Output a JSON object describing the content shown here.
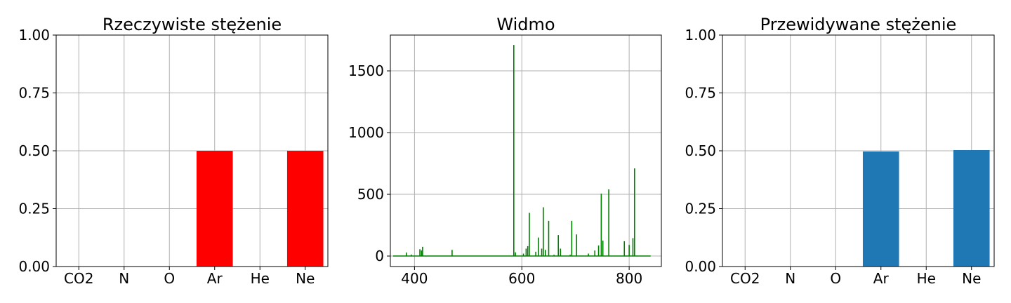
{
  "chart_data": [
    {
      "type": "bar",
      "title": "Rzeczywiste stężenie",
      "categories": [
        "CO2",
        "N",
        "O",
        "Ar",
        "He",
        "Ne"
      ],
      "values": [
        0,
        0,
        0,
        0.5,
        0,
        0.5
      ],
      "ylim": [
        0,
        1
      ],
      "yticks": [
        "0.00",
        "0.25",
        "0.50",
        "0.75",
        "1.00"
      ],
      "grid": true,
      "color": "#ff0000"
    },
    {
      "type": "line",
      "title": "Widmo",
      "xlim": [
        355,
        860
      ],
      "ylim": [
        -85,
        1790
      ],
      "xticks": [
        "400",
        "600",
        "800"
      ],
      "yticks": [
        "0",
        "500",
        "1000",
        "1500"
      ],
      "grid": true,
      "color": "#008000",
      "baseline": [
        [
          360,
          0
        ],
        [
          840,
          0
        ]
      ],
      "peaks": [
        [
          385,
          28
        ],
        [
          394,
          12
        ],
        [
          410,
          55
        ],
        [
          413,
          45
        ],
        [
          415,
          75
        ],
        [
          470,
          50
        ],
        [
          585,
          1710
        ],
        [
          588,
          30
        ],
        [
          603,
          20
        ],
        [
          608,
          60
        ],
        [
          611,
          80
        ],
        [
          614,
          350
        ],
        [
          626,
          35
        ],
        [
          631,
          150
        ],
        [
          637,
          60
        ],
        [
          640,
          395
        ],
        [
          644,
          50
        ],
        [
          650,
          285
        ],
        [
          660,
          10
        ],
        [
          668,
          170
        ],
        [
          672,
          60
        ],
        [
          690,
          10
        ],
        [
          693,
          285
        ],
        [
          702,
          175
        ],
        [
          724,
          20
        ],
        [
          736,
          45
        ],
        [
          743,
          85
        ],
        [
          748,
          505
        ],
        [
          751,
          125
        ],
        [
          762,
          540
        ],
        [
          791,
          120
        ],
        [
          800,
          90
        ],
        [
          807,
          145
        ],
        [
          810,
          710
        ]
      ]
    },
    {
      "type": "bar",
      "title": "Przewidywane stężenie",
      "categories": [
        "CO2",
        "N",
        "O",
        "Ar",
        "He",
        "Ne"
      ],
      "values": [
        0,
        0,
        0,
        0.497,
        0,
        0.503
      ],
      "ylim": [
        0,
        1
      ],
      "yticks": [
        "0.00",
        "0.25",
        "0.50",
        "0.75",
        "1.00"
      ],
      "grid": true,
      "color": "#1f77b4"
    }
  ]
}
